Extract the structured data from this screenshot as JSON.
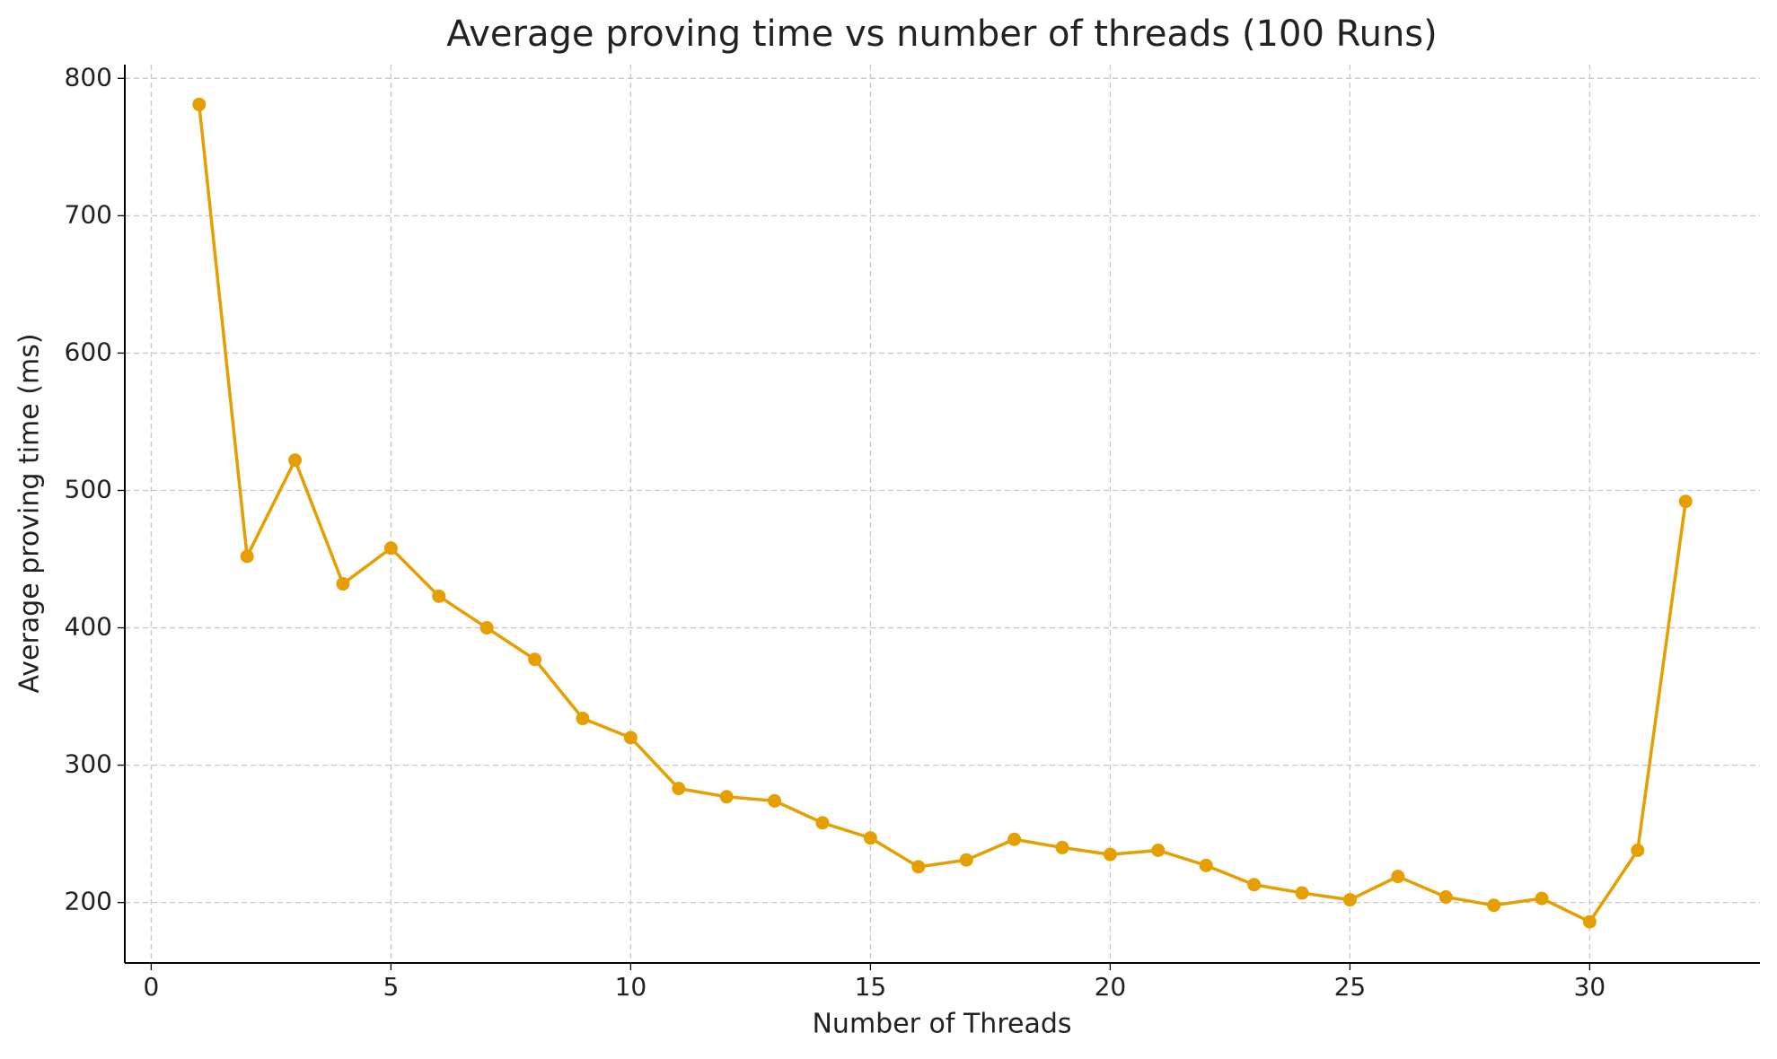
{
  "chart_data": {
    "type": "line",
    "title": "Average proving time vs number of threads (100 Runs)",
    "x_label": "Number of Threads",
    "y_label": "Average proving time (ms)",
    "x": [
      1,
      2,
      3,
      4,
      5,
      6,
      7,
      8,
      9,
      10,
      11,
      12,
      13,
      14,
      15,
      16,
      17,
      18,
      19,
      20,
      21,
      22,
      23,
      24,
      25,
      26,
      27,
      28,
      29,
      30,
      31,
      32
    ],
    "series": [
      {
        "color": "#e69f00",
        "values": [
          781,
          452,
          522,
          432,
          458,
          423,
          400,
          377,
          334,
          320,
          283,
          277,
          274,
          258,
          247,
          226,
          231,
          246,
          240,
          235,
          238,
          227,
          213,
          207,
          202,
          219,
          204,
          198,
          203,
          186,
          238,
          492
        ]
      }
    ],
    "xlim": [
      -0.55,
      33.55
    ],
    "xticks": [
      0,
      5,
      10,
      15,
      20,
      25,
      30
    ],
    "ylim": [
      156,
      810
    ],
    "yticks": [
      200,
      300,
      400,
      500,
      600,
      700,
      800
    ],
    "grid": true
  }
}
